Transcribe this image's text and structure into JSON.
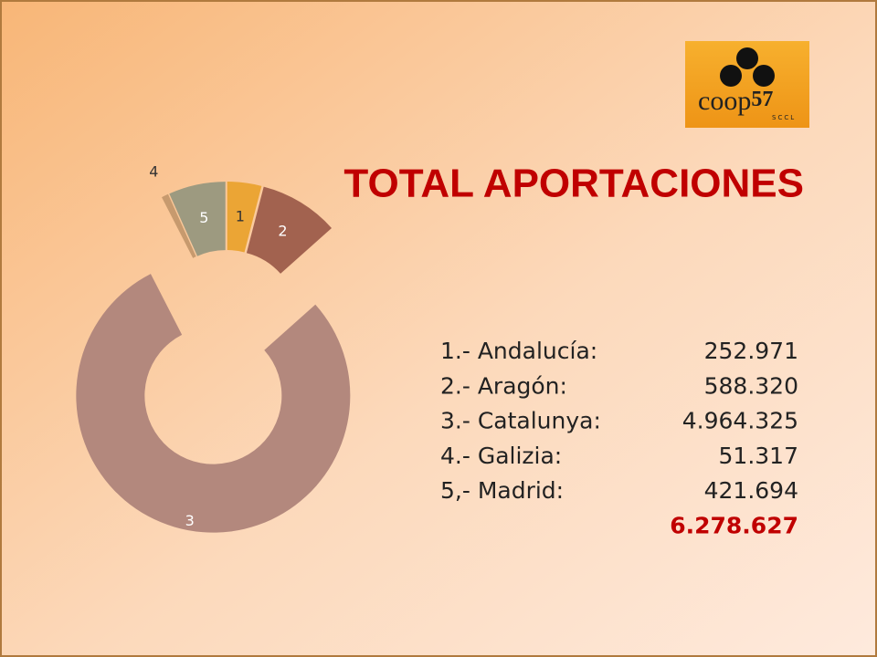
{
  "chart_data": {
    "type": "donut",
    "title": "TOTAL APORTACIONES",
    "categories": [
      "1",
      "2",
      "3",
      "4",
      "5"
    ],
    "names": [
      "1.- Andalucía:",
      "2.- Aragón:",
      "3.- Catalunya:",
      "4.- Galizia:",
      "5,- Madrid:"
    ],
    "values": [
      252971,
      588320,
      4964325,
      51317,
      421694
    ],
    "value_labels": [
      "252.971",
      "588.320",
      "4.964.325",
      "51.317",
      "421.694"
    ],
    "total": {
      "value": 6278627,
      "label": "6.278.627"
    },
    "colors": [
      "#eba535",
      "#a2624f",
      "#b3887d",
      "#c79a6e",
      "#9d9a80"
    ]
  },
  "logo": {
    "name": "coop",
    "number": "57",
    "suffix": "SCCL"
  }
}
